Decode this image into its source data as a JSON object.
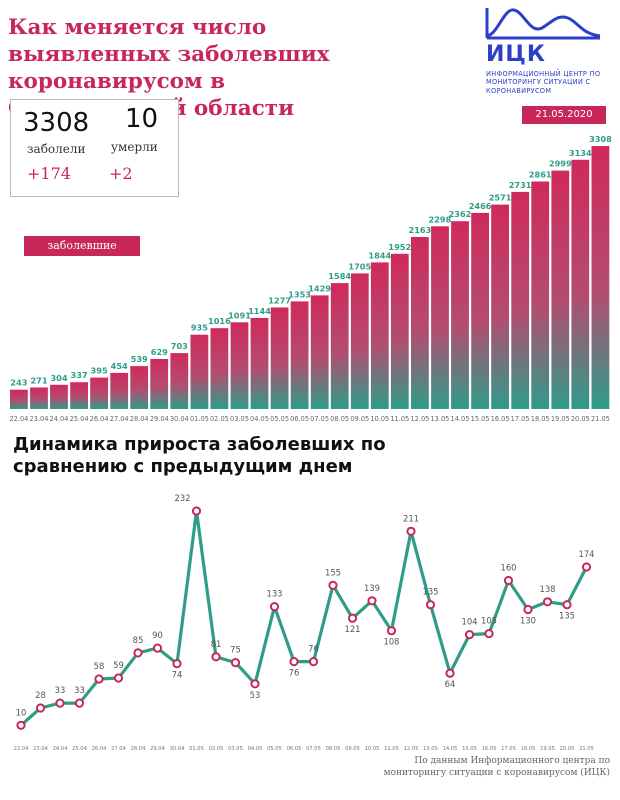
{
  "header": {
    "title": "Как меняется число выявленных заболевших коронавирусом в Свердловской области"
  },
  "logo": {
    "name": "ИЦК",
    "subtitle": "ИНФОРМАЦИОННЫЙ ЦЕНТР ПО МОНИТОРИНГУ СИТУАЦИИ С КОРОНАВИРУСОМ"
  },
  "stats": {
    "cases_value": "3308",
    "cases_label": "заболели",
    "cases_delta": "+174",
    "deaths_value": "10",
    "deaths_label": "умерли",
    "deaths_delta": "+2"
  },
  "date": "21.05.2020",
  "cases_badge": "заболевшие",
  "dynamics_title": "Динамика прироста заболевших по сравнению с предыдущим днем",
  "source": "По данным Информационного центра по мониторингу ситуации с коронавирусом (ИЦК)",
  "colors": {
    "accent": "#c8275a",
    "teal": "#2f9c8a",
    "blue": "#2d3fc8"
  },
  "chart_data": [
    {
      "type": "bar",
      "categories": [
        "22.04",
        "23.04",
        "24.04",
        "25.04",
        "26.04",
        "27.04",
        "28.04",
        "29.04",
        "30.04",
        "01.05",
        "02.05",
        "03.05",
        "04.05",
        "05.05",
        "06.05",
        "07.05",
        "08.05",
        "09.05",
        "10.05",
        "11.05",
        "12.05",
        "13.05",
        "14.05",
        "15.05",
        "16.05",
        "17.05",
        "18.05",
        "19.05",
        "20.05",
        "21.05"
      ],
      "values": [
        243,
        271,
        304,
        337,
        395,
        454,
        539,
        629,
        703,
        935,
        1016,
        1091,
        1144,
        1277,
        1353,
        1429,
        1584,
        1705,
        1844,
        1952,
        2163,
        2298,
        2362,
        2466,
        2571,
        2731,
        2861,
        2999,
        3134,
        3308
      ],
      "ylim": [
        0,
        3400
      ]
    },
    {
      "type": "line",
      "categories": [
        "22.04",
        "23.04",
        "24.04",
        "25.04",
        "26.04",
        "27.04",
        "28.04",
        "29.04",
        "30.04",
        "01.05",
        "02.05",
        "03.05",
        "04.05",
        "05.05",
        "06.05",
        "07.05",
        "08.05",
        "09.05",
        "10.05",
        "11.05",
        "12.05",
        "13.05",
        "14.05",
        "15.05",
        "16.05",
        "17.05",
        "18.05",
        "19.05",
        "20.05",
        "21.05"
      ],
      "values": [
        10,
        28,
        33,
        33,
        58,
        59,
        85,
        90,
        74,
        232,
        81,
        75,
        53,
        133,
        76,
        76,
        155,
        121,
        139,
        108,
        211,
        135,
        64,
        104,
        105,
        160,
        130,
        138,
        135,
        174
      ],
      "ylim": [
        0,
        250
      ]
    }
  ]
}
